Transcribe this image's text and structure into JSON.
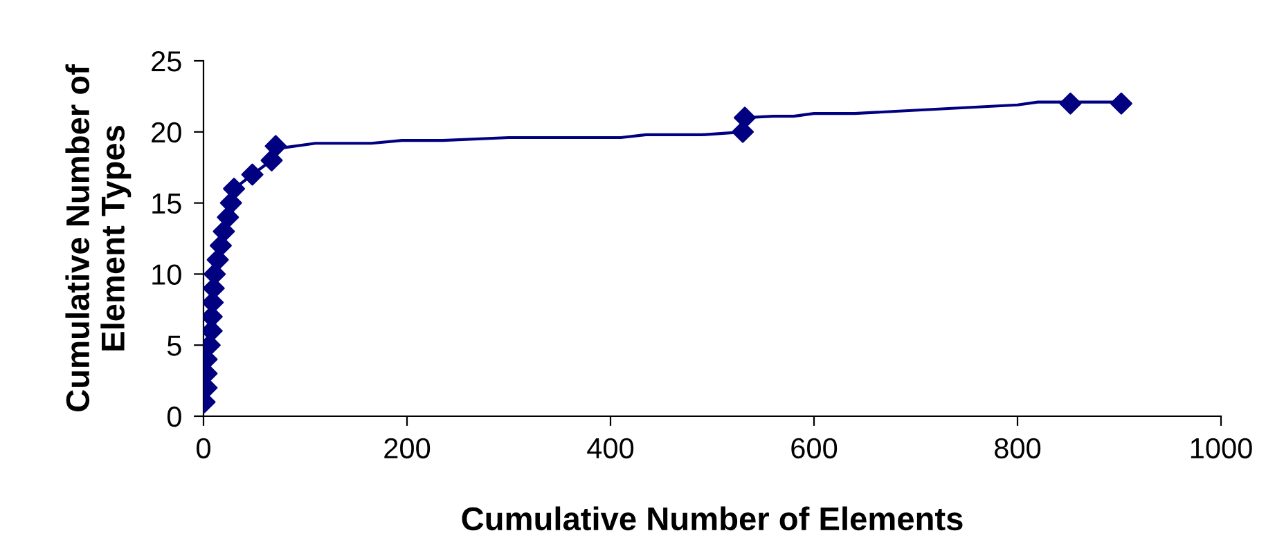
{
  "chart_data": {
    "type": "line",
    "xlabel": "Cumulative Number of Elements",
    "ylabel": "Cumulative Number of Element Types",
    "xlim": [
      0,
      1000
    ],
    "xticks": [
      0,
      200,
      400,
      600,
      800,
      1000
    ],
    "ylim": [
      0,
      25
    ],
    "yticks": [
      0,
      5,
      10,
      15,
      20,
      25
    ],
    "grid": false,
    "legend": false,
    "line_style": "solid",
    "series": [
      {
        "marker": "none",
        "color": "#000080",
        "x": [
          1,
          3,
          3,
          3,
          6,
          8,
          8,
          9,
          10,
          11,
          14,
          17,
          20,
          24,
          27,
          30,
          48,
          67,
          71,
          80,
          110,
          165,
          195,
          235,
          300,
          410,
          435,
          490,
          530,
          532,
          560,
          580,
          600,
          640,
          800,
          820,
          852,
          902
        ],
        "values": [
          1,
          2,
          3,
          4,
          5,
          6,
          7,
          8,
          9,
          10,
          11,
          12,
          13,
          14,
          15,
          16,
          17,
          18,
          19,
          18.9,
          19.2,
          19.2,
          19.4,
          19.4,
          19.6,
          19.6,
          19.8,
          19.8,
          20,
          21,
          21.1,
          21.1,
          21.3,
          21.3,
          21.9,
          22.1,
          22.1,
          22.1
        ]
      },
      {
        "type": "scatter",
        "marker": "diamond",
        "color": "#000080",
        "x": [
          1,
          3,
          3,
          3,
          6,
          8,
          8,
          9,
          10,
          11,
          14,
          17,
          20,
          24,
          27,
          30,
          48,
          67,
          71,
          530,
          532,
          852,
          902
        ],
        "values": [
          1,
          2,
          3,
          4,
          5,
          6,
          7,
          8,
          9,
          10,
          11,
          12,
          13,
          14,
          15,
          16,
          17,
          18,
          19,
          20,
          21,
          22,
          22
        ]
      }
    ]
  }
}
